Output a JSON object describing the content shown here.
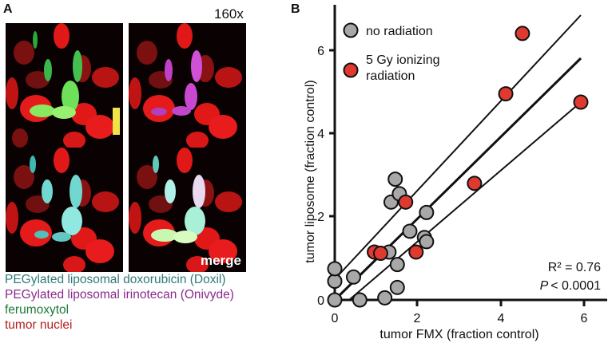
{
  "panel_a": {
    "label": "A",
    "magnification": "160x",
    "merge_label": "merge",
    "legend": [
      {
        "text": "PEGylated liposomal doxorubicin (Doxil)",
        "color": "#2e7a78"
      },
      {
        "text": "PEGylated liposomal irinotecan (Onivyde)",
        "color": "#8a2a8a"
      },
      {
        "text": "ferumoxytol",
        "color": "#1f7a3a"
      },
      {
        "text": "tumor nuclei",
        "color": "#b01e1e"
      }
    ]
  },
  "panel_b": {
    "label": "B",
    "legend": [
      {
        "text": "no radiation",
        "color": "#a8a8a8"
      },
      {
        "text": "5 Gy ionizing",
        "text2": "radiation",
        "color": "#e03a30"
      }
    ],
    "stats_r2": "R² = 0.76",
    "stats_p_label": "P",
    "stats_p_value": "< 0.0001"
  },
  "chart_data": {
    "type": "scatter",
    "title": "",
    "xlabel": "tumor FMX (fraction control)",
    "ylabel": "tumor liposome (fraction control)",
    "xlim": [
      0,
      6.6
    ],
    "ylim": [
      0,
      7
    ],
    "xticks": [
      0,
      2,
      4,
      6
    ],
    "yticks": [
      0,
      2,
      4,
      6
    ],
    "grid": false,
    "legend_position": "top-left",
    "series": [
      {
        "name": "no radiation",
        "color": "#a8a8a8",
        "points": [
          [
            0.0,
            0.0
          ],
          [
            0.0,
            0.45
          ],
          [
            0.0,
            0.75
          ],
          [
            0.45,
            0.55
          ],
          [
            0.6,
            0.0
          ],
          [
            1.2,
            0.05
          ],
          [
            1.3,
            1.15
          ],
          [
            1.35,
            2.35
          ],
          [
            1.45,
            2.9
          ],
          [
            1.5,
            0.3
          ],
          [
            1.55,
            2.55
          ],
          [
            1.5,
            0.85
          ],
          [
            1.8,
            1.65
          ],
          [
            2.15,
            1.5
          ],
          [
            2.2,
            1.4
          ],
          [
            2.2,
            2.1
          ]
        ]
      },
      {
        "name": "5 Gy ionizing radiation",
        "color": "#e03a30",
        "points": [
          [
            0.95,
            1.15
          ],
          [
            1.1,
            1.12
          ],
          [
            1.7,
            2.35
          ],
          [
            1.95,
            1.15
          ],
          [
            3.35,
            2.8
          ],
          [
            4.1,
            4.95
          ],
          [
            4.5,
            6.4
          ],
          [
            5.9,
            4.75
          ]
        ]
      }
    ],
    "fit_lines": [
      {
        "name": "upper 95% CI",
        "x": [
          0.0,
          5.9
        ],
        "y": [
          0.5,
          6.85
        ]
      },
      {
        "name": "regression",
        "x": [
          0.0,
          5.9
        ],
        "y": [
          0.0,
          5.8
        ]
      },
      {
        "name": "lower 95% CI",
        "x": [
          0.35,
          5.9
        ],
        "y": [
          0.0,
          4.75
        ]
      }
    ],
    "annotations": [
      "R² = 0.76",
      "P < 0.0001"
    ]
  }
}
